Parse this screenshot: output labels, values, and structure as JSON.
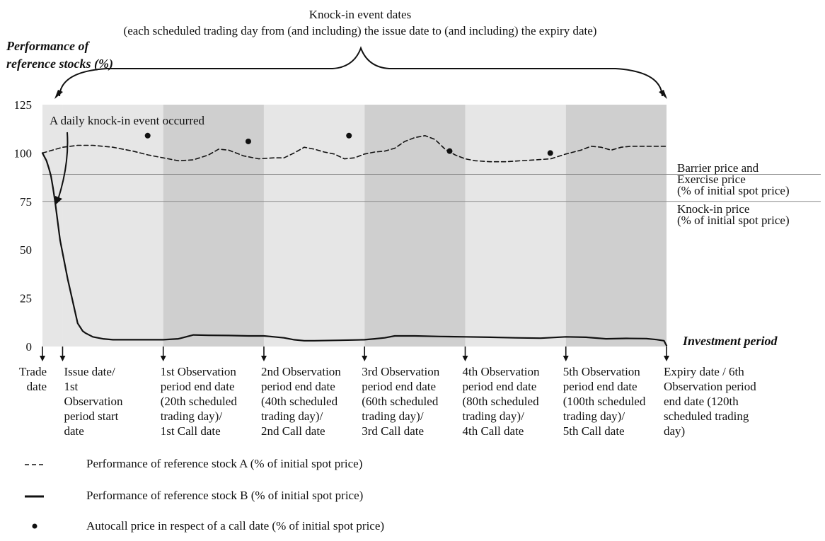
{
  "chart_data": {
    "type": "line",
    "title": "Knock-in event dates",
    "subtitle": "(each scheduled trading day from (and including) the issue date to (and including) the expiry date)",
    "ylabel_line1": "Performance of",
    "ylabel_line2": "reference stocks (%)",
    "xlabel": "Investment period",
    "ylim": [
      0,
      125
    ],
    "y_ticks": [
      0,
      25,
      50,
      75,
      100,
      125
    ],
    "x_range": [
      -4,
      120
    ],
    "x_unit": "scheduled trading day",
    "period_boundaries": [
      0,
      20,
      40,
      60,
      80,
      100,
      120
    ],
    "period_shades": [
      "light",
      "dark",
      "light",
      "dark",
      "light",
      "dark"
    ],
    "reference_lines": [
      {
        "id": "barrier",
        "y": 89,
        "label_lines": [
          "Barrier price and",
          "Exercise price",
          "(% of initial spot price)"
        ]
      },
      {
        "id": "knockin",
        "y": 75,
        "label_lines": [
          "Knock-in price",
          "(% of initial spot price)"
        ]
      }
    ],
    "annotation": "A daily knock-in event occurred",
    "series": [
      {
        "name": "Performance of reference stock A (% of initial spot price)",
        "style": "dashed",
        "x": [
          -4,
          -2,
          0,
          3,
          6,
          10,
          14,
          17,
          20,
          23,
          26,
          29,
          31,
          33,
          36,
          39,
          42,
          44,
          46,
          48,
          50,
          52,
          54,
          56,
          58,
          60,
          62,
          64,
          66,
          68,
          70,
          72,
          74,
          76,
          78,
          80,
          82,
          85,
          88,
          91,
          94,
          97,
          100,
          103,
          105,
          107,
          109,
          111,
          113,
          115,
          117,
          120
        ],
        "y": [
          100,
          101.5,
          103,
          104,
          104,
          103,
          101,
          99,
          97.5,
          96,
          96.5,
          99,
          102,
          101.5,
          98.5,
          97,
          97.5,
          97.5,
          100,
          103,
          102,
          100.5,
          99.5,
          97,
          97.5,
          99.5,
          100.5,
          101,
          102.5,
          106,
          108,
          109,
          107,
          102,
          99,
          97,
          96,
          95.5,
          95.5,
          96,
          96.5,
          97,
          99.5,
          101.5,
          103.5,
          103,
          101.5,
          103,
          103.5,
          103.5,
          103.5,
          103.5
        ]
      },
      {
        "name": "Performance of reference stock B (% of initial spot price)",
        "style": "solid",
        "x": [
          -4,
          -3.2,
          -2.7,
          -2.3,
          -1.9,
          -1.5,
          -0.5,
          1,
          3,
          4,
          4.5,
          6,
          8,
          10,
          12,
          15,
          18,
          20,
          23,
          26,
          29,
          33,
          37,
          40,
          42,
          44,
          46,
          48,
          50,
          55,
          60,
          62,
          64,
          66,
          70,
          75,
          80,
          85,
          90,
          95,
          100,
          104,
          108,
          112,
          116,
          118,
          119.5,
          120
        ],
        "y": [
          100,
          96,
          92,
          88,
          82,
          75,
          55,
          35,
          12,
          8,
          7,
          5,
          4,
          3.5,
          3.5,
          3.5,
          3.5,
          3.5,
          4,
          6,
          5.8,
          5.7,
          5.5,
          5.5,
          5,
          4.5,
          3.5,
          3,
          3,
          3.2,
          3.5,
          4,
          4.5,
          5.5,
          5.5,
          5.2,
          5,
          4.8,
          4.5,
          4.3,
          5,
          4.8,
          4,
          4.2,
          4.1,
          3.6,
          3,
          0.5
        ]
      }
    ],
    "autocall_points": {
      "name": "Autocall price in respect of a call date (% of initial spot price)",
      "x": [
        20,
        40,
        60,
        80,
        100
      ],
      "y": [
        109,
        106,
        109,
        101,
        100
      ]
    },
    "x_markers": [
      {
        "x": -4,
        "lines": [
          "Trade",
          "date"
        ],
        "align": "right"
      },
      {
        "x": 0,
        "lines": [
          "Issue date/",
          "1st",
          "Observation",
          "period start",
          "date"
        ],
        "align": "left"
      },
      {
        "x": 20,
        "lines": [
          "1st Observation",
          "period end date",
          "(20th scheduled",
          "trading day)/",
          "1st Call date"
        ],
        "align": "left"
      },
      {
        "x": 40,
        "lines": [
          "2nd Observation",
          "period end date",
          "(40th scheduled",
          "trading day)/",
          "2nd Call date"
        ],
        "align": "left"
      },
      {
        "x": 60,
        "lines": [
          "3rd  Observation",
          "period end date",
          "(60th scheduled",
          "trading day)/",
          "3rd Call date"
        ],
        "align": "left"
      },
      {
        "x": 80,
        "lines": [
          "4th Observation",
          "period end date",
          "(80th scheduled",
          "trading day)/",
          "4th Call date"
        ],
        "align": "left"
      },
      {
        "x": 100,
        "lines": [
          "5th Observation",
          "period end date",
          "(100th scheduled",
          "trading day)/",
          "5th Call date"
        ],
        "align": "left"
      },
      {
        "x": 120,
        "lines": [
          "Expiry date / 6th",
          "Observation period",
          "end date (120th",
          "scheduled trading",
          "day)"
        ],
        "align": "left"
      }
    ],
    "grid": false,
    "legend_position": "bottom-left",
    "colors": {
      "shade_light": "#e6e6e6",
      "shade_dark": "#cfcfcf",
      "line": "#111111",
      "ref_line": "#888888"
    }
  }
}
